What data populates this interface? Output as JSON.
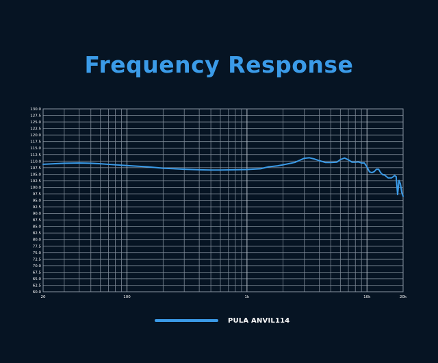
{
  "chart_data": {
    "type": "line",
    "title": "Frequency Response",
    "x_scale": "log",
    "xlim": [
      20,
      20000
    ],
    "ylim": [
      60,
      130
    ],
    "grid": true,
    "legend_position": "bottom-center",
    "x_tick_labels": [
      {
        "value": 20,
        "label": "20"
      },
      {
        "value": 100,
        "label": "100"
      },
      {
        "value": 1000,
        "label": "1k"
      },
      {
        "value": 10000,
        "label": "10k"
      },
      {
        "value": 20000,
        "label": "20k"
      }
    ],
    "y_tick_labels": [
      "60.0",
      "62.5",
      "65.0",
      "67.5",
      "70.0",
      "72.5",
      "75.0",
      "77.5",
      "80.0",
      "82.5",
      "85.0",
      "87.5",
      "90.0",
      "92.5",
      "95.0",
      "97.5",
      "100.0",
      "102.5",
      "105.0",
      "107.5",
      "110.0",
      "112.5",
      "115.0",
      "117.5",
      "120.0",
      "122.5",
      "125.0",
      "127.5",
      "130.0"
    ],
    "series": [
      {
        "name": "PULA ANVIL114",
        "color": "#3b9be8",
        "x": [
          20,
          30,
          40,
          50,
          60,
          80,
          100,
          150,
          200,
          300,
          400,
          500,
          600,
          800,
          1000,
          1300,
          1500,
          1800,
          2000,
          2500,
          2800,
          3000,
          3300,
          3600,
          4000,
          4500,
          5000,
          5600,
          6000,
          6500,
          7000,
          7500,
          8000,
          8500,
          9000,
          9500,
          10000,
          10500,
          11000,
          11500,
          12000,
          12500,
          13000,
          13500,
          14000,
          15000,
          16000,
          16500,
          17000,
          17500,
          18000,
          18500,
          19000,
          19500,
          20000
        ],
        "y": [
          108.8,
          109.2,
          109.3,
          109.2,
          109.0,
          108.6,
          108.3,
          107.8,
          107.3,
          106.9,
          106.7,
          106.6,
          106.6,
          106.7,
          106.8,
          107.1,
          107.8,
          108.2,
          108.6,
          109.5,
          110.5,
          111.1,
          111.3,
          110.9,
          110.2,
          109.5,
          109.5,
          109.6,
          110.6,
          111.2,
          110.5,
          109.6,
          109.6,
          109.7,
          109.3,
          109.3,
          107.8,
          105.9,
          105.6,
          106.0,
          106.9,
          106.9,
          105.6,
          104.8,
          104.7,
          103.6,
          103.6,
          104.0,
          104.5,
          104.1,
          97.2,
          102.6,
          101.3,
          98.0,
          96.6
        ]
      }
    ]
  }
}
